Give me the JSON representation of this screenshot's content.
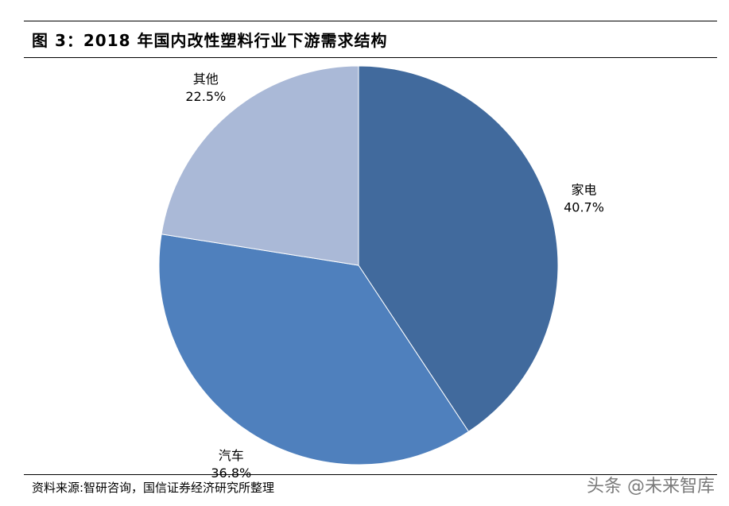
{
  "figure": {
    "title": "图 3：2018 年国内改性塑料行业下游需求结构",
    "source": "资料来源:智研咨询，国信证券经济研究所整理",
    "watermark": "头条 @未来智库"
  },
  "chart_data": {
    "type": "pie",
    "title": "",
    "start_angle_deg": 0,
    "direction": "clockwise",
    "slices": [
      {
        "label": "家电",
        "value": 40.7,
        "value_label": "40.7%",
        "color": "#416a9d"
      },
      {
        "label": "汽车",
        "value": 36.8,
        "value_label": "36.8%",
        "color": "#4f80bd"
      },
      {
        "label": "其他",
        "value": 22.5,
        "value_label": "22.5%",
        "color": "#aab9d7"
      }
    ]
  }
}
